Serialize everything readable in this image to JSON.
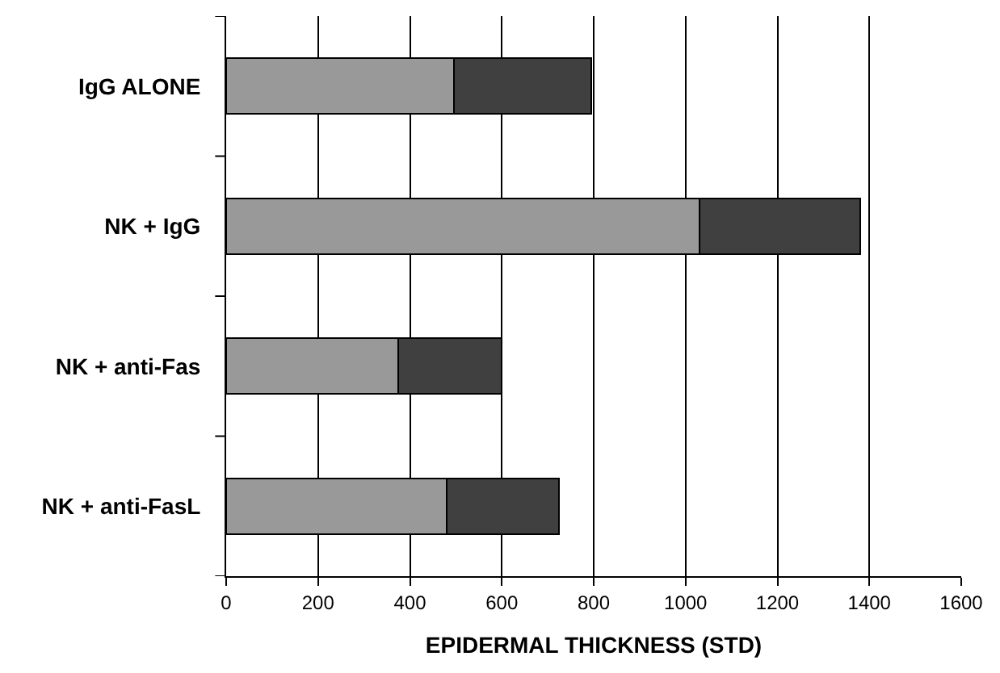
{
  "chart_data": {
    "type": "bar",
    "orientation": "horizontal",
    "stacked": true,
    "xlabel": "EPIDERMAL THICKNESS (STD)",
    "categories": [
      "IgG ALONE",
      "NK + IgG",
      "NK + anti-Fas",
      "NK + anti-FasL"
    ],
    "series": [
      {
        "color": "#999999",
        "values": [
          495,
          1030,
          375,
          480
        ]
      },
      {
        "color": "#404040",
        "values": [
          300,
          350,
          225,
          245
        ]
      }
    ],
    "xlim": [
      0,
      1600
    ],
    "xticks": [
      0,
      200,
      400,
      600,
      800,
      1000,
      1200,
      1400,
      1600
    ],
    "grid": "x",
    "legend": false
  }
}
